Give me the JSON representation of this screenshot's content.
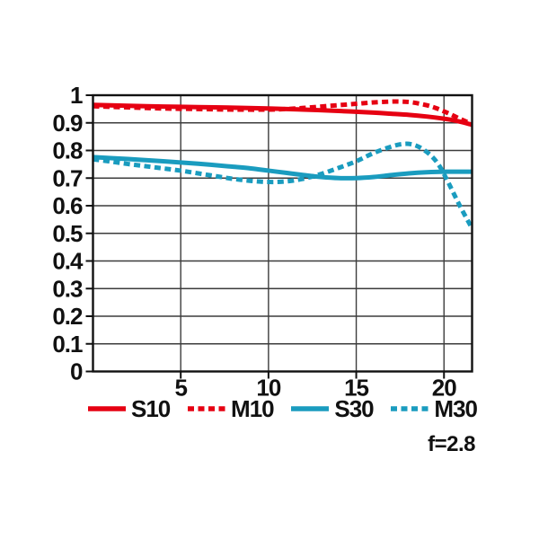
{
  "chart_data": {
    "type": "line",
    "title": "",
    "xlabel": "",
    "ylabel": "",
    "xlim": [
      0,
      21.6
    ],
    "ylim": [
      0,
      1
    ],
    "xticks": [
      5,
      10,
      15,
      20
    ],
    "yticks": [
      0,
      0.1,
      0.2,
      0.3,
      0.4,
      0.5,
      0.6,
      0.7,
      0.8,
      0.9,
      1
    ],
    "ytick_labels": [
      "0",
      "0.1",
      "0.2",
      "0.3",
      "0.4",
      "0.5",
      "0.6",
      "0.7",
      "0.8",
      "0.9",
      "1"
    ],
    "grid": true,
    "legend_position": "bottom",
    "annotation": "f=2.8",
    "colors": {
      "red": "#e60012",
      "cyan": "#1a9cbf",
      "grid": "#3c3c3c",
      "border": "#111111",
      "text": "#111111"
    },
    "series": [
      {
        "name": "S10",
        "color": "#e60012",
        "dash": "solid",
        "points": [
          [
            0,
            0.965
          ],
          [
            2,
            0.962
          ],
          [
            4,
            0.959
          ],
          [
            6,
            0.957
          ],
          [
            8,
            0.955
          ],
          [
            10,
            0.952
          ],
          [
            12,
            0.948
          ],
          [
            14,
            0.943
          ],
          [
            16,
            0.937
          ],
          [
            17,
            0.933
          ],
          [
            18,
            0.929
          ],
          [
            19,
            0.923
          ],
          [
            20,
            0.915
          ],
          [
            20.8,
            0.906
          ],
          [
            21.6,
            0.893
          ]
        ]
      },
      {
        "name": "M10",
        "color": "#e60012",
        "dash": "dashed",
        "points": [
          [
            0,
            0.96
          ],
          [
            2,
            0.956
          ],
          [
            4,
            0.952
          ],
          [
            6,
            0.95
          ],
          [
            8,
            0.948
          ],
          [
            10,
            0.948
          ],
          [
            11,
            0.95
          ],
          [
            12,
            0.954
          ],
          [
            13,
            0.959
          ],
          [
            14,
            0.964
          ],
          [
            15,
            0.969
          ],
          [
            16,
            0.974
          ],
          [
            17,
            0.977
          ],
          [
            17.6,
            0.977
          ],
          [
            18.2,
            0.974
          ],
          [
            19,
            0.964
          ],
          [
            19.6,
            0.952
          ],
          [
            20.2,
            0.936
          ],
          [
            20.9,
            0.915
          ],
          [
            21.6,
            0.895
          ]
        ]
      },
      {
        "name": "S30",
        "color": "#1a9cbf",
        "dash": "solid",
        "points": [
          [
            0,
            0.776
          ],
          [
            2,
            0.769
          ],
          [
            4,
            0.761
          ],
          [
            6,
            0.752
          ],
          [
            8,
            0.741
          ],
          [
            9,
            0.735
          ],
          [
            10,
            0.727
          ],
          [
            11,
            0.719
          ],
          [
            12,
            0.711
          ],
          [
            13,
            0.704
          ],
          [
            14,
            0.7
          ],
          [
            15,
            0.7
          ],
          [
            16,
            0.704
          ],
          [
            17,
            0.711
          ],
          [
            18,
            0.717
          ],
          [
            19,
            0.721
          ],
          [
            20,
            0.723
          ],
          [
            21.6,
            0.723
          ]
        ]
      },
      {
        "name": "M30",
        "color": "#1a9cbf",
        "dash": "dashed",
        "points": [
          [
            0,
            0.768
          ],
          [
            1,
            0.76
          ],
          [
            2,
            0.751
          ],
          [
            3,
            0.743
          ],
          [
            4,
            0.735
          ],
          [
            5,
            0.727
          ],
          [
            6,
            0.717
          ],
          [
            7,
            0.707
          ],
          [
            8,
            0.697
          ],
          [
            9,
            0.69
          ],
          [
            10,
            0.686
          ],
          [
            11,
            0.688
          ],
          [
            12,
            0.698
          ],
          [
            13,
            0.715
          ],
          [
            14,
            0.737
          ],
          [
            15,
            0.761
          ],
          [
            16,
            0.791
          ],
          [
            17,
            0.814
          ],
          [
            17.6,
            0.823
          ],
          [
            18.1,
            0.823
          ],
          [
            18.6,
            0.812
          ],
          [
            19.2,
            0.785
          ],
          [
            19.7,
            0.748
          ],
          [
            20.2,
            0.69
          ],
          [
            20.9,
            0.6
          ],
          [
            21.6,
            0.518
          ]
        ]
      }
    ]
  },
  "legend": {
    "items": [
      {
        "label": "S10"
      },
      {
        "label": "M10"
      },
      {
        "label": "S30"
      },
      {
        "label": "M30"
      }
    ]
  }
}
